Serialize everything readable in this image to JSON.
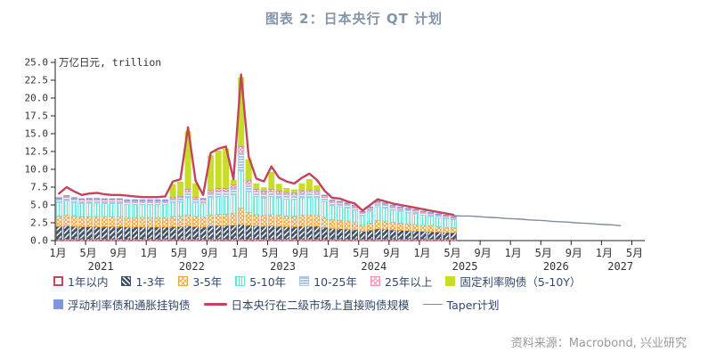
{
  "title": "图表 2：日本央行 QT 计划",
  "source_note": "资料来源：Macrobond, 兴业研究",
  "chart_data": {
    "type": "bar",
    "subtype": "stacked-bar-with-lines",
    "title": "图表 2：日本央行 QT 计划",
    "unit_label": "万亿日元, trillion",
    "ylim": [
      0,
      25
    ],
    "ytick_step": 2.5,
    "ytick_labels": [
      "0.0",
      "2.5",
      "5.0",
      "7.5",
      "10.0",
      "12.5",
      "15.0",
      "17.5",
      "20.0",
      "22.5",
      "25.0"
    ],
    "grid": "off",
    "legend_position": "bottom",
    "x_axis": {
      "bars_start": "2021-01",
      "bars_months": 53,
      "axis_total_months": 77,
      "month_tick_positions": [
        0,
        4,
        8,
        12,
        16,
        20,
        24,
        28,
        32,
        36,
        40,
        44,
        48,
        52,
        56,
        60,
        64,
        68,
        72,
        76
      ],
      "month_tick_labels": [
        "1月",
        "5月",
        "9月",
        "1月",
        "5月",
        "9月",
        "1月",
        "5月",
        "9月",
        "1月",
        "5月",
        "9月",
        "1月",
        "5月",
        "9月",
        "1月",
        "5月",
        "9月",
        "1月",
        "5月"
      ],
      "year_labels": [
        {
          "label": "2021",
          "month_index": 6
        },
        {
          "label": "2022",
          "month_index": 18
        },
        {
          "label": "2023",
          "month_index": 30
        },
        {
          "label": "2024",
          "month_index": 42
        },
        {
          "label": "2025",
          "month_index": 54
        },
        {
          "label": "2026",
          "month_index": 66
        },
        {
          "label": "2027",
          "month_index": 74.5
        }
      ]
    },
    "bar_series": [
      {
        "name": "1年以内",
        "color": "#c2455c",
        "pattern": "dense-diagonal",
        "values": [
          0.25,
          0.25,
          0.25,
          0.25,
          0.25,
          0.25,
          0.25,
          0.25,
          0.25,
          0.25,
          0.25,
          0.25,
          0.25,
          0.25,
          0.25,
          0.25,
          0.25,
          0.25,
          0.25,
          0.25,
          0.25,
          0.25,
          0.25,
          0.25,
          0.25,
          0.25,
          0.25,
          0.25,
          0.25,
          0.25,
          0.25,
          0.25,
          0.25,
          0.25,
          0.25,
          0.25,
          0.25,
          0.25,
          0.25,
          0.25,
          0.25,
          0.25,
          0.25,
          0.25,
          0.25,
          0.25,
          0.25,
          0.25,
          0.25,
          0.25,
          0.25,
          0.25,
          0.25
        ]
      },
      {
        "name": "1-3年",
        "color": "#3d5068",
        "pattern": "white-diagonal-on-navy",
        "values": [
          1.75,
          1.8,
          1.75,
          1.7,
          1.7,
          1.7,
          1.7,
          1.7,
          1.7,
          1.65,
          1.65,
          1.65,
          1.65,
          1.65,
          1.65,
          1.7,
          1.7,
          1.8,
          1.7,
          1.65,
          1.8,
          1.85,
          1.85,
          1.9,
          2.0,
          1.9,
          1.8,
          1.75,
          1.8,
          1.75,
          1.7,
          1.7,
          1.75,
          1.75,
          1.75,
          1.6,
          1.45,
          1.4,
          1.35,
          1.25,
          1.05,
          1.2,
          1.4,
          1.35,
          1.25,
          1.2,
          1.15,
          1.1,
          1.05,
          1.0,
          0.95,
          0.9,
          0.85
        ]
      },
      {
        "name": "3-5年",
        "color": "#f2a43c",
        "pattern": "crosshatch",
        "values": [
          1.45,
          1.5,
          1.45,
          1.4,
          1.4,
          1.4,
          1.4,
          1.4,
          1.4,
          1.35,
          1.35,
          1.35,
          1.35,
          1.35,
          1.35,
          1.45,
          1.45,
          1.55,
          1.45,
          1.4,
          1.55,
          1.6,
          1.6,
          1.7,
          2.3,
          1.8,
          1.6,
          1.55,
          1.6,
          1.55,
          1.5,
          1.5,
          1.55,
          1.55,
          1.55,
          1.4,
          1.25,
          1.2,
          1.15,
          1.05,
          0.85,
          1.0,
          1.2,
          1.15,
          1.05,
          1.0,
          0.95,
          0.9,
          0.85,
          0.8,
          0.75,
          0.7,
          0.7
        ]
      },
      {
        "name": "5-10年",
        "color": "#62e3d5",
        "pattern": "vertical-stripes",
        "values": [
          1.9,
          2.0,
          1.9,
          1.85,
          1.9,
          1.9,
          1.85,
          1.85,
          1.85,
          1.8,
          1.8,
          1.8,
          1.8,
          1.8,
          1.8,
          1.95,
          2.0,
          2.4,
          1.95,
          1.85,
          2.3,
          2.4,
          2.4,
          2.6,
          5.2,
          2.9,
          2.5,
          2.4,
          2.5,
          2.4,
          2.35,
          2.3,
          2.45,
          2.5,
          2.45,
          2.2,
          1.95,
          1.9,
          1.8,
          1.7,
          1.35,
          1.6,
          1.9,
          1.8,
          1.7,
          1.6,
          1.55,
          1.5,
          1.4,
          1.35,
          1.3,
          1.25,
          1.15
        ]
      },
      {
        "name": "10-25年",
        "color": "#a7c7e5",
        "pattern": "horizontal-stripes",
        "values": [
          0.45,
          0.5,
          0.45,
          0.45,
          0.45,
          0.45,
          0.45,
          0.45,
          0.45,
          0.45,
          0.45,
          0.45,
          0.45,
          0.45,
          0.45,
          0.55,
          0.6,
          0.85,
          0.55,
          0.5,
          0.8,
          0.85,
          0.85,
          0.95,
          2.6,
          1.1,
          0.75,
          0.7,
          0.75,
          0.7,
          0.68,
          0.65,
          0.72,
          0.75,
          0.72,
          0.6,
          0.5,
          0.5,
          0.48,
          0.45,
          0.35,
          0.42,
          0.5,
          0.48,
          0.45,
          0.42,
          0.4,
          0.38,
          0.35,
          0.33,
          0.3,
          0.28,
          0.26
        ]
      },
      {
        "name": "25年以上",
        "color": "#f48fb0",
        "pattern": "crosshatch",
        "values": [
          0.15,
          0.18,
          0.15,
          0.15,
          0.15,
          0.15,
          0.15,
          0.15,
          0.15,
          0.15,
          0.15,
          0.15,
          0.15,
          0.15,
          0.15,
          0.2,
          0.22,
          0.35,
          0.2,
          0.18,
          0.32,
          0.35,
          0.35,
          0.4,
          0.85,
          0.45,
          0.3,
          0.28,
          0.3,
          0.28,
          0.27,
          0.26,
          0.29,
          0.3,
          0.29,
          0.24,
          0.2,
          0.2,
          0.19,
          0.18,
          0.14,
          0.17,
          0.2,
          0.19,
          0.18,
          0.17,
          0.16,
          0.15,
          0.14,
          0.13,
          0.12,
          0.11,
          0.1
        ]
      },
      {
        "name": "浮动利率债和通胀挂钩债",
        "color": "#8097d8",
        "pattern": "solid",
        "values": [
          0.08,
          0.08,
          0.08,
          0.08,
          0.08,
          0.08,
          0.08,
          0.08,
          0.08,
          0.08,
          0.08,
          0.08,
          0.08,
          0.08,
          0.08,
          0.08,
          0.08,
          0.08,
          0.08,
          0.08,
          0.08,
          0.08,
          0.08,
          0.08,
          0.08,
          0.08,
          0.08,
          0.08,
          0.08,
          0.08,
          0.08,
          0.08,
          0.08,
          0.08,
          0.08,
          0.08,
          0.08,
          0.08,
          0.08,
          0.08,
          0.08,
          0.08,
          0.08,
          0.08,
          0.08,
          0.08,
          0.08,
          0.08,
          0.08,
          0.08,
          0.08,
          0.08,
          0.08
        ]
      },
      {
        "name": "固定利率购债（5-10Y）",
        "color": "#c8dc28",
        "pattern": "solid",
        "values": [
          0,
          0,
          0,
          0,
          0,
          0,
          0,
          0,
          0,
          0,
          0,
          0,
          0,
          0,
          0,
          1.7,
          1.9,
          8.0,
          1.8,
          0,
          4.8,
          5.2,
          5.5,
          0.6,
          9.6,
          2.9,
          0.7,
          0.4,
          2.3,
          0.9,
          0.5,
          0.4,
          0.9,
          1.4,
          0.6,
          0,
          0,
          0,
          0,
          0,
          0,
          0,
          0,
          0,
          0,
          0,
          0,
          0,
          0,
          0,
          0,
          0,
          0
        ]
      }
    ],
    "line_series": [
      {
        "name": "日本央行在二级市场上直接购债规模",
        "color": "#c2455c",
        "stroke_width": 2.4,
        "start_month_index": 0,
        "values": [
          6.6,
          7.5,
          6.9,
          6.4,
          6.6,
          6.7,
          6.5,
          6.4,
          6.4,
          6.3,
          6.2,
          6.1,
          6.1,
          6.1,
          6.2,
          8.3,
          8.6,
          15.9,
          8.4,
          6.4,
          12.3,
          12.9,
          13.2,
          8.6,
          23.3,
          11.8,
          8.7,
          8.3,
          10.4,
          8.8,
          8.3,
          8.0,
          8.8,
          9.4,
          8.5,
          7.0,
          6.0,
          5.9,
          5.5,
          5.2,
          4.2,
          5.0,
          5.8,
          5.5,
          5.2,
          5.0,
          4.8,
          4.6,
          4.4,
          4.2,
          4.0,
          3.8,
          3.6
        ]
      },
      {
        "name": "Taper计划",
        "color": "#7e8ca0",
        "stroke_width": 1.4,
        "start_month_index": 52,
        "values": [
          3.5,
          3.45,
          3.45,
          3.4,
          3.3,
          3.25,
          3.2,
          3.1,
          3.05,
          3.0,
          2.9,
          2.85,
          2.8,
          2.7,
          2.65,
          2.6,
          2.5,
          2.45,
          2.4,
          2.3,
          2.25,
          2.2,
          2.1
        ]
      }
    ],
    "legend_row1": [
      {
        "type": "bar",
        "index": 0
      },
      {
        "type": "bar",
        "index": 1
      },
      {
        "type": "bar",
        "index": 2
      },
      {
        "type": "bar",
        "index": 3
      },
      {
        "type": "bar",
        "index": 4
      },
      {
        "type": "bar",
        "index": 5
      },
      {
        "type": "bar",
        "index": 7
      }
    ],
    "legend_row2": [
      {
        "type": "bar",
        "index": 6
      },
      {
        "type": "line",
        "index": 0
      },
      {
        "type": "line",
        "index": 1
      }
    ],
    "colors": {
      "title": "#8295ab",
      "legend_text": "#31476b",
      "axis": "#222222",
      "source": "#9a9a9a",
      "boj_line": "#c2455c",
      "taper_line": "#7e8ca0"
    }
  }
}
